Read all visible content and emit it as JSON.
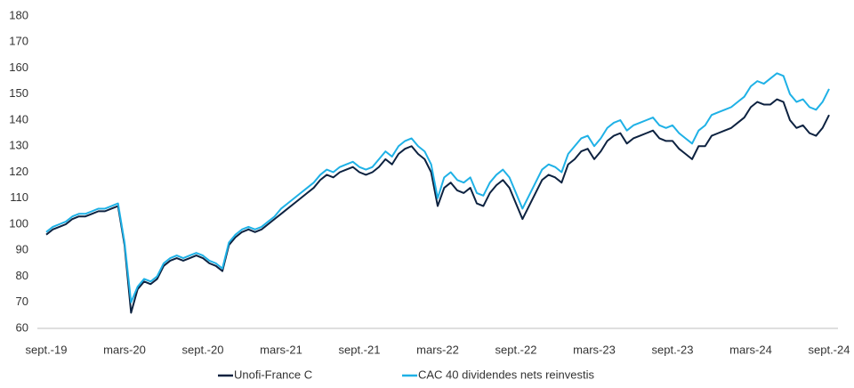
{
  "chart_data": {
    "type": "line",
    "categories": [
      "sept.-19",
      null,
      null,
      null,
      null,
      null,
      null,
      null,
      null,
      null,
      null,
      null,
      "mars-20",
      null,
      null,
      null,
      null,
      null,
      null,
      null,
      null,
      null,
      null,
      null,
      "sept.-20",
      null,
      null,
      null,
      null,
      null,
      null,
      null,
      null,
      null,
      null,
      null,
      "mars-21",
      null,
      null,
      null,
      null,
      null,
      null,
      null,
      null,
      null,
      null,
      null,
      "sept.-21",
      null,
      null,
      null,
      null,
      null,
      null,
      null,
      null,
      null,
      null,
      null,
      "mars-22",
      null,
      null,
      null,
      null,
      null,
      null,
      null,
      null,
      null,
      null,
      null,
      "sept.-22",
      null,
      null,
      null,
      null,
      null,
      null,
      null,
      null,
      null,
      null,
      null,
      "mars-23",
      null,
      null,
      null,
      null,
      null,
      null,
      null,
      null,
      null,
      null,
      null,
      "sept.-23",
      null,
      null,
      null,
      null,
      null,
      null,
      null,
      null,
      null,
      null,
      null,
      "mars-24",
      null,
      null,
      null,
      null,
      null,
      null,
      null,
      null,
      null,
      null,
      null,
      "sept.-24"
    ],
    "series": [
      {
        "name": "Unofi-France C",
        "color": "#0d2240",
        "values": [
          96,
          98,
          99,
          100,
          102,
          103,
          103,
          104,
          105,
          105,
          106,
          107,
          92,
          66,
          75,
          78,
          77,
          79,
          84,
          86,
          87,
          86,
          87,
          88,
          87,
          85,
          84,
          82,
          92,
          95,
          97,
          98,
          97,
          98,
          100,
          102,
          104,
          106,
          108,
          110,
          112,
          114,
          117,
          119,
          118,
          120,
          121,
          122,
          120,
          119,
          120,
          122,
          125,
          123,
          127,
          129,
          130,
          127,
          125,
          120,
          107,
          114,
          116,
          113,
          112,
          114,
          108,
          107,
          112,
          115,
          117,
          114,
          108,
          102,
          107,
          112,
          117,
          119,
          118,
          116,
          123,
          125,
          128,
          129,
          125,
          128,
          132,
          134,
          135,
          131,
          133,
          134,
          135,
          136,
          133,
          132,
          132,
          129,
          127,
          125,
          130,
          130,
          134,
          135,
          136,
          137,
          139,
          141,
          145,
          147,
          146,
          146,
          148,
          147,
          140,
          137,
          138,
          135,
          134,
          137,
          142
        ]
      },
      {
        "name": "CAC 40 dividendes nets reinvestis",
        "color": "#1fb1e6",
        "values": [
          97,
          99,
          100,
          101,
          103,
          104,
          104,
          105,
          106,
          106,
          107,
          108,
          93,
          70,
          76,
          79,
          78,
          80,
          85,
          87,
          88,
          87,
          88,
          89,
          88,
          86,
          85,
          83,
          93,
          96,
          98,
          99,
          98,
          99,
          101,
          103,
          106,
          108,
          110,
          112,
          114,
          116,
          119,
          121,
          120,
          122,
          123,
          124,
          122,
          121,
          122,
          125,
          128,
          126,
          130,
          132,
          133,
          130,
          128,
          123,
          110,
          118,
          120,
          117,
          116,
          118,
          112,
          111,
          116,
          119,
          121,
          118,
          112,
          106,
          111,
          116,
          121,
          123,
          122,
          120,
          127,
          130,
          133,
          134,
          130,
          133,
          137,
          139,
          140,
          136,
          138,
          139,
          140,
          141,
          138,
          137,
          138,
          135,
          133,
          131,
          136,
          138,
          142,
          143,
          144,
          145,
          147,
          149,
          153,
          155,
          154,
          156,
          158,
          157,
          150,
          147,
          148,
          145,
          144,
          147,
          152
        ]
      }
    ],
    "ylim": [
      60,
      180
    ],
    "yticks": [
      60,
      70,
      80,
      90,
      100,
      110,
      120,
      130,
      140,
      150,
      160,
      170,
      180
    ],
    "grid": false,
    "legend": "bottom"
  }
}
